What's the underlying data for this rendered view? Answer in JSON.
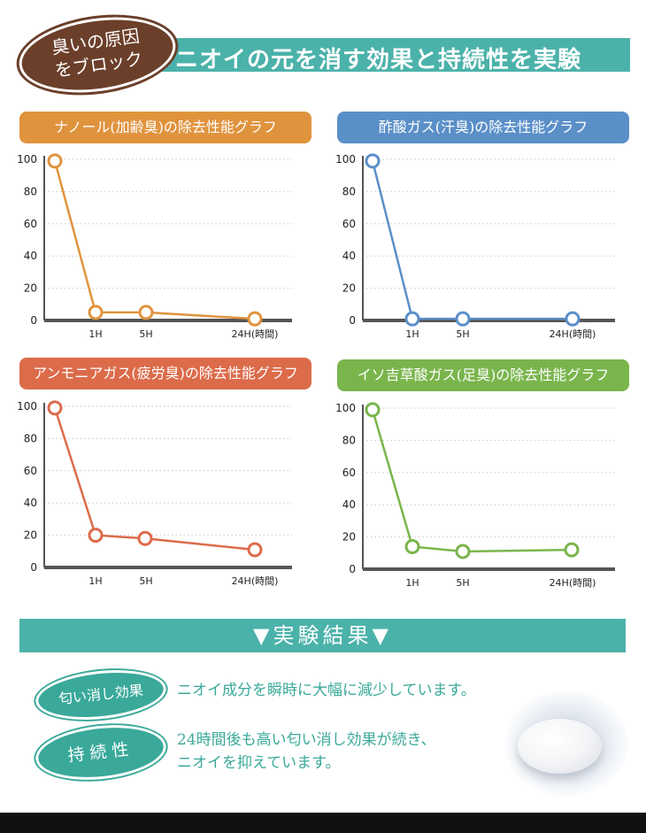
{
  "header": {
    "badge_line1": "臭いの原因",
    "badge_line2": "をブロック",
    "title": "ニオイの元を消す効果と持続性を実験"
  },
  "colors": {
    "teal": "#4bb2aa",
    "brown": "#6b3f2a",
    "orange": "#e0933d",
    "blue": "#5b8fc8",
    "red_orange": "#dc6b4a",
    "green": "#7ab54c"
  },
  "chart_data": [
    {
      "type": "line",
      "title": "ナノール(加齢臭)の除去性能グラフ",
      "color": "#e0933d",
      "x_ticks": [
        "1H",
        "5H",
        "24H(時間)"
      ],
      "y_ticks": [
        "0",
        "20",
        "40",
        "60",
        "80",
        "100"
      ],
      "ylim": [
        0,
        100
      ],
      "values": [
        99,
        5,
        5,
        1
      ]
    },
    {
      "type": "line",
      "title": "酢酸ガス(汗臭)の除去性能グラフ",
      "color": "#5b8fc8",
      "x_ticks": [
        "1H",
        "5H",
        "24H(時間)"
      ],
      "y_ticks": [
        "0",
        "20",
        "40",
        "60",
        "80",
        "100"
      ],
      "ylim": [
        0,
        100
      ],
      "values": [
        99,
        1,
        1,
        1
      ]
    },
    {
      "type": "line",
      "title": "アンモニアガス(疲労臭)の除去性能グラフ",
      "color": "#dc6b4a",
      "x_ticks": [
        "1H",
        "5H",
        "24H(時間)"
      ],
      "y_ticks": [
        "0",
        "20",
        "40",
        "60",
        "80",
        "100"
      ],
      "ylim": [
        0,
        100
      ],
      "values": [
        99,
        20,
        18,
        11
      ]
    },
    {
      "type": "line",
      "title": "イソ吉草酸ガス(足臭)の除去性能グラフ",
      "color": "#7ab54c",
      "x_ticks": [
        "1H",
        "5H",
        "24H(時間)"
      ],
      "y_ticks": [
        "0",
        "20",
        "40",
        "60",
        "80",
        "100"
      ],
      "ylim": [
        0,
        100
      ],
      "values": [
        99,
        14,
        11,
        12
      ]
    }
  ],
  "results": {
    "title": "▼実験結果▼",
    "items": [
      {
        "label": "匂い消し効果",
        "text_line1": "ニオイ成分を瞬時に大幅に減少しています。",
        "text_line2": ""
      },
      {
        "label": "持続性",
        "text_line1": "24時間後も高い匂い消し効果が続き、",
        "text_line2": "ニオイを抑えています。"
      }
    ]
  }
}
